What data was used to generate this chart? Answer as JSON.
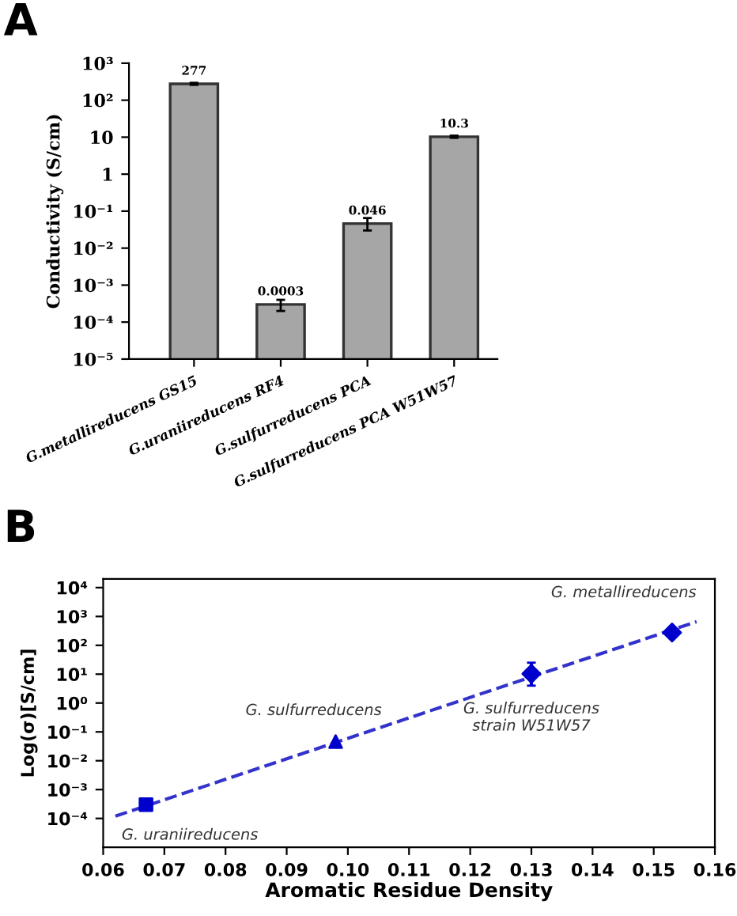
{
  "chart_data": [
    {
      "type": "bar",
      "title": "A",
      "ylabel": "Conductivity (S/cm)",
      "log": true,
      "categories": [
        "G.metallireducens GS15",
        "G.uraniireducens RF4",
        "G.sulfurreducens PCA",
        "G.sulfurreducens PCA W51W57"
      ],
      "values": [
        277,
        0.0003,
        0.046,
        10.3
      ],
      "errors": [
        [
          260,
          295
        ],
        [
          0.0002,
          0.0004
        ],
        [
          0.03,
          0.065
        ],
        [
          9.6,
          11
        ]
      ],
      "color": "#a6a6a6",
      "data_labels": true,
      "grid": false,
      "ylim": [
        1e-05,
        1000
      ],
      "yticks": [
        {
          "value": 1e-05,
          "label": "10⁻⁵"
        },
        {
          "value": 0.0001,
          "label": "10⁻⁴"
        },
        {
          "value": 0.001,
          "label": "10⁻³"
        },
        {
          "value": 0.01,
          "label": "10⁻²"
        },
        {
          "value": 0.1,
          "label": "10⁻¹"
        },
        1,
        10,
        {
          "value": 100,
          "label": "10²"
        },
        {
          "value": 1000,
          "label": "10³"
        }
      ]
    },
    {
      "type": "scatter",
      "title": "B",
      "xlabel": "Aromatic Residue Density",
      "ylabel": "Log(σ)[S/cm]",
      "log": true,
      "grid": false,
      "xlim": [
        0.06,
        0.16
      ],
      "xticks": [
        0.06,
        0.07,
        0.08,
        0.09,
        {
          "value": 0.1,
          "label": "0.10"
        },
        0.11,
        0.12,
        0.13,
        0.14,
        0.15,
        0.16
      ],
      "ylim": [
        1e-05,
        20000
      ],
      "yticks": [
        {
          "value": 0.0001,
          "label": "10⁻⁴"
        },
        {
          "value": 0.001,
          "label": "10⁻³"
        },
        {
          "value": 0.01,
          "label": "10⁻²"
        },
        {
          "value": 0.1,
          "label": "10⁻¹"
        },
        {
          "value": 1,
          "label": "10⁰"
        },
        {
          "value": 10,
          "label": "10¹"
        },
        {
          "value": 100,
          "label": "10²"
        },
        {
          "value": 1000,
          "label": "10³"
        },
        {
          "value": 10000,
          "label": "10⁴"
        }
      ],
      "series": [
        {
          "type": "line",
          "x": [
            0.062,
            0.157
          ],
          "values": [
            0.00012,
            660
          ],
          "color": "#3333cc",
          "line_style": "dashed",
          "marker": "none"
        },
        {
          "x": [
            0.067
          ],
          "values": [
            0.0003
          ],
          "color": "#0000cc",
          "marker": "square"
        },
        {
          "x": [
            0.098
          ],
          "values": [
            0.046
          ],
          "color": "#0000cc",
          "marker": "triangle"
        },
        {
          "x": [
            0.13
          ],
          "values": [
            10.3
          ],
          "errors": [
            [
              4,
              25
            ]
          ],
          "color": "#0000cc",
          "marker": "diamond"
        },
        {
          "x": [
            0.153
          ],
          "values": [
            277
          ],
          "color": "#0000cc",
          "marker": "diamond"
        }
      ],
      "annotations": [
        {
          "text": "G. uraniireducens",
          "x": 0.067,
          "y": 0.0003
        },
        {
          "text": "G. sulfurreducens",
          "x": 0.098,
          "y": 0.046
        },
        {
          "text": "G. sulfurreducens\nstrain W51W57",
          "x": 0.13,
          "y": 10.3
        },
        {
          "text": "G. metallireducens",
          "x": 0.153,
          "y": 277
        }
      ]
    }
  ]
}
